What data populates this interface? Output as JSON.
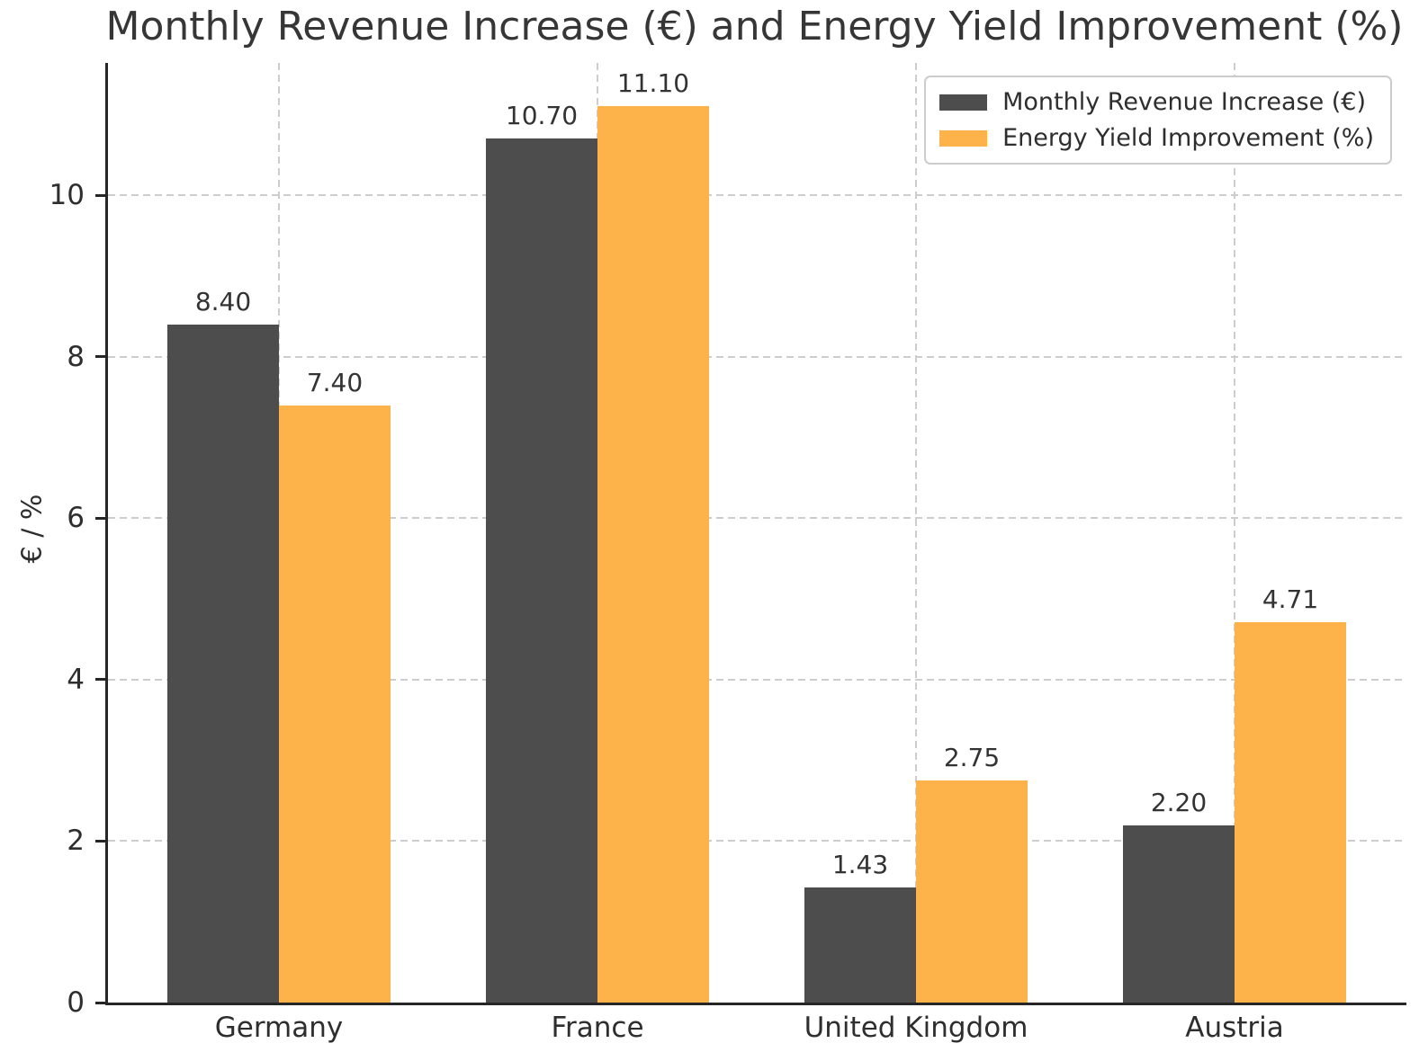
{
  "chart_data": {
    "type": "bar",
    "title": "Monthly Revenue Increase (€) and Energy Yield Improvement (%)",
    "xlabel": "",
    "ylabel": "€ / %",
    "categories": [
      "Germany",
      "France",
      "United Kingdom",
      "Austria"
    ],
    "series": [
      {
        "name": "Monthly Revenue Increase (€)",
        "color": "#4d4d4d",
        "values": [
          8.4,
          10.7,
          1.43,
          2.2
        ]
      },
      {
        "name": "Energy Yield Improvement (%)",
        "color": "#fdb24a",
        "values": [
          7.4,
          11.1,
          2.75,
          4.71
        ]
      }
    ],
    "value_labels": [
      [
        "8.40",
        "10.70",
        "1.43",
        "2.20"
      ],
      [
        "7.40",
        "11.10",
        "2.75",
        "4.71"
      ]
    ],
    "y_ticks": [
      "0",
      "2",
      "4",
      "6",
      "8",
      "10"
    ],
    "ylim": [
      0,
      11.64
    ],
    "grid": "both-dashed",
    "legend_position": "upper-right",
    "style": {
      "grid_color": "#cdcdcd",
      "spine_color": "#262626",
      "text_color": "#2e2e2e",
      "background": "#ffffff"
    }
  }
}
